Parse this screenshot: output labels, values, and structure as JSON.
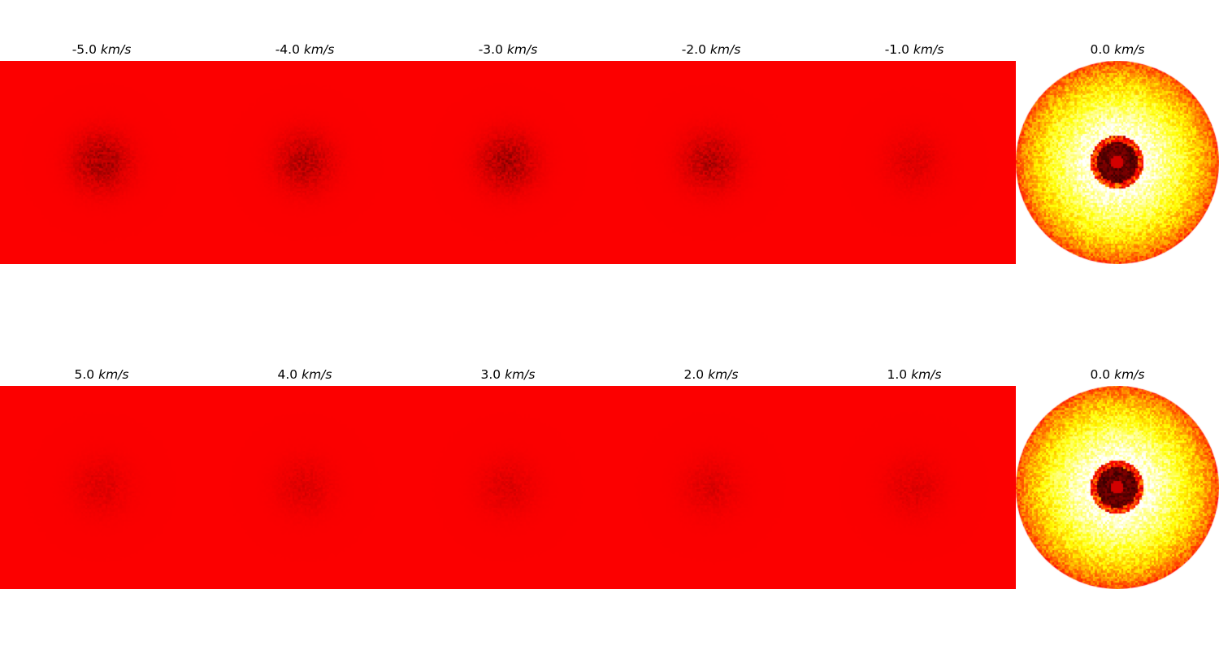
{
  "chart_data": {
    "type": "heatmap",
    "colormap": "hot",
    "background_color": "#ff1a00",
    "unit": "km/s",
    "panels": [
      {
        "row": 0,
        "col": 0,
        "value": "-5.0",
        "unit": "km/s",
        "intensity": 0.06
      },
      {
        "row": 0,
        "col": 1,
        "value": "-4.0",
        "unit": "km/s",
        "intensity": 0.05
      },
      {
        "row": 0,
        "col": 2,
        "value": "-3.0",
        "unit": "km/s",
        "intensity": 0.06
      },
      {
        "row": 0,
        "col": 3,
        "value": "-2.0",
        "unit": "km/s",
        "intensity": 0.05
      },
      {
        "row": 0,
        "col": 4,
        "value": "-1.0",
        "unit": "km/s",
        "intensity": 0.02
      },
      {
        "row": 0,
        "col": 5,
        "value": "0.0",
        "unit": "km/s",
        "intensity": 1.0
      },
      {
        "row": 1,
        "col": 0,
        "value": "5.0",
        "unit": "km/s",
        "intensity": 0.02
      },
      {
        "row": 1,
        "col": 1,
        "value": "4.0",
        "unit": "km/s",
        "intensity": 0.02
      },
      {
        "row": 1,
        "col": 2,
        "value": "3.0",
        "unit": "km/s",
        "intensity": 0.02
      },
      {
        "row": 1,
        "col": 3,
        "value": "2.0",
        "unit": "km/s",
        "intensity": 0.02
      },
      {
        "row": 1,
        "col": 4,
        "value": "1.0",
        "unit": "km/s",
        "intensity": 0.02
      },
      {
        "row": 1,
        "col": 5,
        "value": "0.0",
        "unit": "km/s",
        "intensity": 1.0
      }
    ]
  }
}
